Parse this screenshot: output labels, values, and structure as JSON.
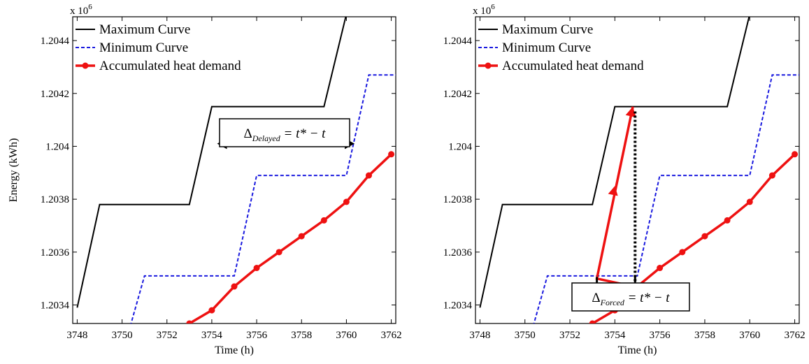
{
  "chart_data": [
    {
      "type": "line",
      "title": "",
      "xlabel": "Time (h)",
      "ylabel": "Energy (kWh)",
      "y_multiplier": "x 10",
      "y_multiplier_exp": "6",
      "xlim": [
        3747.8,
        3762.2
      ],
      "ylim": [
        1.20333,
        1.20449
      ],
      "xticks": [
        3748,
        3750,
        3752,
        3754,
        3756,
        3758,
        3760,
        3762
      ],
      "yticks": [
        1.2034,
        1.2036,
        1.2038,
        1.204,
        1.2042,
        1.2044
      ],
      "ytick_labels": [
        "1.2034",
        "1.2036",
        "1.2038",
        "1.204",
        "1.2042",
        "1.2044"
      ],
      "grid": false,
      "legend_position": "top-left",
      "series": [
        {
          "name": "Maximum Curve",
          "color": "#000000",
          "style": "solid",
          "x": [
            3748,
            3749,
            3753,
            3754,
            3759,
            3760
          ],
          "y": [
            1.20339,
            1.20378,
            1.20378,
            1.20415,
            1.20415,
            1.2045
          ]
        },
        {
          "name": "Minimum Curve",
          "color": "#1a1adf",
          "style": "dashed",
          "x": [
            3750.3,
            3751,
            3755,
            3756,
            3760,
            3761,
            3762.2
          ],
          "y": [
            1.2033,
            1.20351,
            1.20351,
            1.20389,
            1.20389,
            1.20427,
            1.20427
          ]
        },
        {
          "name": "Accumulated heat demand",
          "color": "#ee1111",
          "style": "solid-markers",
          "x": [
            3753,
            3754,
            3755,
            3756,
            3757,
            3758,
            3759,
            3760,
            3761,
            3762
          ],
          "y": [
            1.20333,
            1.20338,
            1.20347,
            1.20354,
            1.2036,
            1.20366,
            1.20372,
            1.20379,
            1.20389,
            1.20397
          ]
        }
      ],
      "annotation": {
        "label_main": "Δ",
        "label_sub": "Delayed",
        "label_rest": " = t* − t",
        "arrow_y": 1.20401,
        "arrow_x_from": 3754.3,
        "arrow_x_to": 3760.3
      }
    },
    {
      "type": "line",
      "title": "",
      "xlabel": "Time (h)",
      "ylabel": "",
      "y_multiplier": "x 10",
      "y_multiplier_exp": "6",
      "xlim": [
        3747.8,
        3762.2
      ],
      "ylim": [
        1.20333,
        1.20449
      ],
      "xticks": [
        3748,
        3750,
        3752,
        3754,
        3756,
        3758,
        3760,
        3762
      ],
      "yticks": [
        1.2034,
        1.2036,
        1.2038,
        1.204,
        1.2042,
        1.2044
      ],
      "ytick_labels": [
        "1.2034",
        "1.2036",
        "1.2038",
        "1.204",
        "1.2042",
        "1.2044"
      ],
      "grid": false,
      "legend_position": "top-left",
      "series": [
        {
          "name": "Maximum Curve",
          "color": "#000000",
          "style": "solid",
          "x": [
            3748,
            3749,
            3753,
            3754,
            3759,
            3760
          ],
          "y": [
            1.20339,
            1.20378,
            1.20378,
            1.20415,
            1.20415,
            1.2045
          ]
        },
        {
          "name": "Minimum Curve",
          "color": "#1a1adf",
          "style": "dashed",
          "x": [
            3750.3,
            3751,
            3755,
            3756,
            3760,
            3761,
            3762.2
          ],
          "y": [
            1.2033,
            1.20351,
            1.20351,
            1.20389,
            1.20389,
            1.20427,
            1.20427
          ]
        },
        {
          "name": "Accumulated heat demand",
          "color": "#ee1111",
          "style": "solid-markers",
          "x": [
            3753,
            3754,
            3755,
            3756,
            3757,
            3758,
            3759,
            3760,
            3761,
            3762
          ],
          "y": [
            1.20333,
            1.20338,
            1.20347,
            1.20354,
            1.2036,
            1.20366,
            1.20372,
            1.20379,
            1.20389,
            1.20397
          ]
        }
      ],
      "forced_path": {
        "x": [
          3754.8,
          3753.2,
          3754.8
        ],
        "y": [
          1.20347,
          1.2035,
          1.20415
        ]
      },
      "forced_arrow_mid": {
        "x": 3754.0,
        "y": 1.20385
      },
      "annotation": {
        "label_main": "Δ",
        "label_sub": "Forced",
        "label_rest": " = t* − t",
        "bracket_x_from": 3753.2,
        "bracket_x_to": 3754.9,
        "bracket_y": 1.20349,
        "dotted_x": 3754.9,
        "dotted_y_from": 1.20349,
        "dotted_y_to": 1.20415
      }
    }
  ]
}
